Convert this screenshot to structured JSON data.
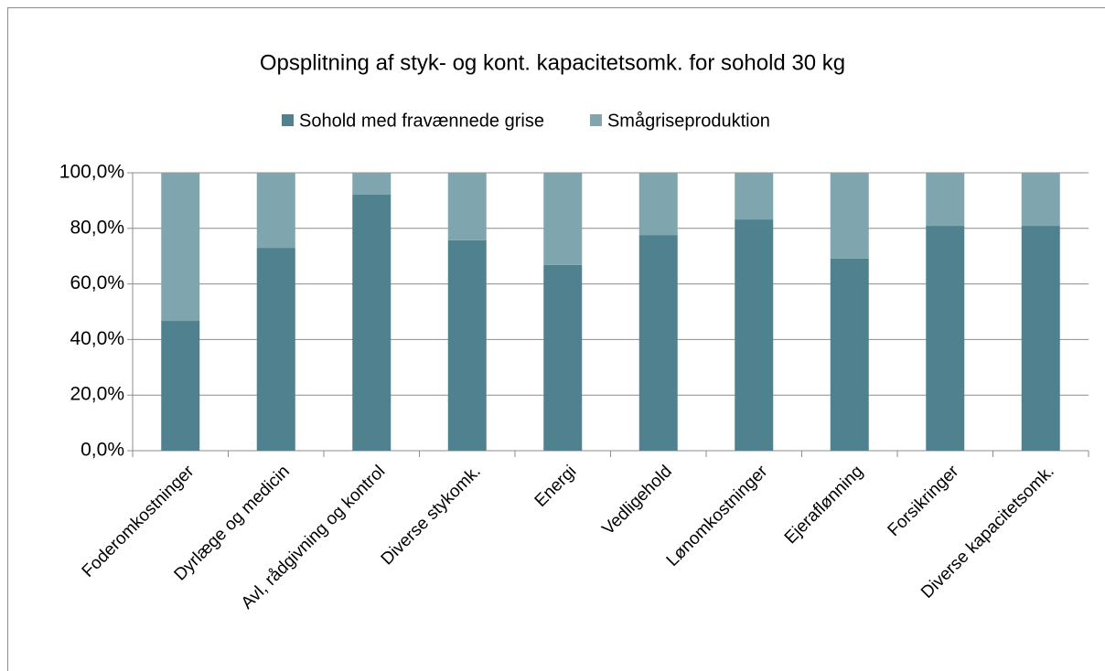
{
  "chart_data": {
    "type": "stacked_bar",
    "title": "Opsplitning af styk- og kont. kapacitetsomk. for sohold 30 kg",
    "categories": [
      "Foderomkostninger",
      "Dyrlæge og medicin",
      "Avl, rådgivning og kontrol",
      "Diverse stykomk.",
      "Energi",
      "Vedligehold",
      "Lønomkostninger",
      "Ejeraflønning",
      "Forsikringer",
      "Diverse kapacitetsomk."
    ],
    "series": [
      {
        "name": "Sohold med fravænnede grise",
        "color": "#4f818f",
        "values": [
          46.7,
          73.0,
          92.1,
          75.7,
          66.8,
          77.6,
          83.2,
          69.1,
          80.9,
          80.9
        ]
      },
      {
        "name": "Smågriseproduktion",
        "color": "#7fa6ae",
        "values": [
          53.3,
          27.0,
          7.9,
          24.3,
          33.2,
          22.4,
          16.8,
          30.9,
          19.1,
          19.1
        ]
      }
    ],
    "ylim": [
      0,
      100
    ],
    "yticks": [
      {
        "value": 0,
        "label": "0,0%"
      },
      {
        "value": 20,
        "label": "20,0%"
      },
      {
        "value": 40,
        "label": "40,0%"
      },
      {
        "value": 60,
        "label": "60,0%"
      },
      {
        "value": 80,
        "label": "80,0%"
      },
      {
        "value": 100,
        "label": "100,0%"
      }
    ],
    "grid": true,
    "legend": "top"
  }
}
